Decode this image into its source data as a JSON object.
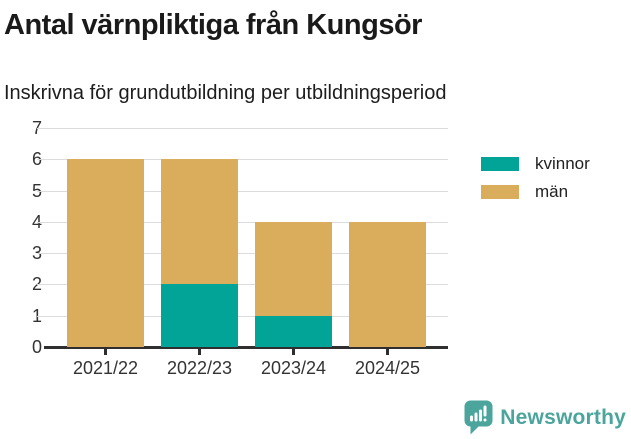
{
  "header": {
    "title": "Antal värnpliktiga från Kungsör",
    "subtitle": "Inskrivna för grundutbildning per utbildningsperiod"
  },
  "chart_data": {
    "type": "bar",
    "stacked": true,
    "title": "Antal värnpliktiga från Kungsör",
    "subtitle": "Inskrivna för grundutbildning per utbildningsperiod",
    "categories": [
      "2021/22",
      "2022/23",
      "2023/24",
      "2024/25"
    ],
    "series": [
      {
        "name": "kvinnor",
        "color": "#03a498",
        "values": [
          0,
          2,
          1,
          0
        ]
      },
      {
        "name": "män",
        "color": "#d9ad5c",
        "values": [
          6,
          4,
          3,
          4
        ]
      }
    ],
    "totals": [
      6,
      6,
      4,
      4
    ],
    "ylim": [
      0,
      7
    ],
    "yticks": [
      0,
      1,
      2,
      3,
      4,
      5,
      6,
      7
    ],
    "xlabel": "",
    "ylabel": "",
    "grid": "horizontal",
    "gridline_color": "#dcdcdc",
    "axis_color": "#2f2f2f",
    "legend_position": "right"
  },
  "branding": {
    "logo_text": "Newsworthy",
    "logo_icon": "bar-chart-speech-bubble",
    "logo_color": "#4ba59d"
  }
}
